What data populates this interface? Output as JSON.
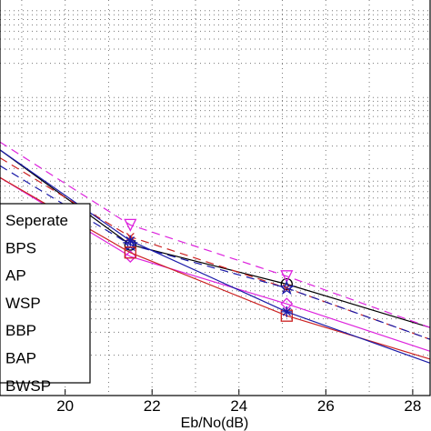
{
  "chart_data": {
    "type": "line",
    "xlabel": "Eb/No(dB)",
    "ylabel": "",
    "xlim": [
      18.5,
      28.4
    ],
    "x_ticks": [
      "20",
      "22",
      "24",
      "26",
      "28"
    ],
    "y_scale": "log",
    "grid": true,
    "legend_position": "bottom-left",
    "series": [
      {
        "name": "Seperate",
        "color": "#000000",
        "dash": "solid",
        "marker": "circle",
        "marker_x": [
          21.5,
          25.1
        ],
        "x": [
          18.5,
          21.5,
          25.1,
          28.4
        ],
        "y": [
          0.38,
          0.62,
          0.72,
          0.83
        ]
      },
      {
        "name": "BPS",
        "color": "#cc2222",
        "dash": "dashed",
        "marker": "x",
        "marker_x": [
          21.5,
          25.1
        ],
        "x": [
          18.5,
          21.5,
          25.1,
          28.4
        ],
        "y": [
          0.4,
          0.6,
          0.73,
          0.86
        ]
      },
      {
        "name": "AP",
        "color": "#dd22dd",
        "dash": "dashed",
        "marker": "triangle-down",
        "marker_x": [
          21.5,
          25.1
        ],
        "x": [
          18.5,
          21.5,
          25.1,
          28.4
        ],
        "y": [
          0.36,
          0.57,
          0.7,
          0.83
        ]
      },
      {
        "name": "WSP",
        "color": "#1a1aa8",
        "dash": "dashed",
        "marker": "star",
        "marker_x": [
          21.5,
          25.1
        ],
        "x": [
          18.5,
          21.5,
          25.1,
          28.4
        ],
        "y": [
          0.42,
          0.62,
          0.73,
          0.86
        ]
      },
      {
        "name": "BBP",
        "color": "#dd22dd",
        "dash": "solid",
        "marker": "diamond",
        "marker_x": [
          21.5,
          25.1
        ],
        "x": [
          18.5,
          21.5,
          25.1,
          28.4
        ],
        "y": [
          0.45,
          0.65,
          0.77,
          0.89
        ]
      },
      {
        "name": "BAP",
        "color": "#cc2222",
        "dash": "solid",
        "marker": "square",
        "marker_x": [
          21.5,
          25.1
        ],
        "x": [
          18.5,
          21.5,
          25.1,
          28.4
        ],
        "y": [
          0.45,
          0.64,
          0.8,
          0.91
        ]
      },
      {
        "name": "BWSP",
        "color": "#1a1aa8",
        "dash": "solid",
        "marker": "asterisk",
        "marker_x": [
          21.5,
          25.1
        ],
        "x": [
          18.5,
          21.5,
          25.1,
          28.4
        ],
        "y": [
          0.38,
          0.61,
          0.79,
          0.92
        ]
      }
    ]
  }
}
